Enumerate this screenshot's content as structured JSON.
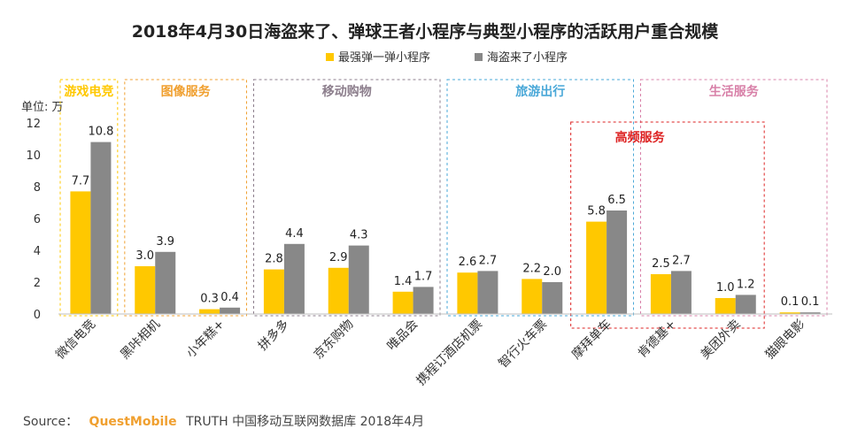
{
  "chart_data": {
    "type": "bar",
    "title": "2018年4月30日海盗来了、弹球王者小程序与典型小程序的活跃用户重合规模",
    "ylabel": "单位: 万",
    "xlabel": "",
    "ylim": [
      0,
      12
    ],
    "yticks": [
      0,
      2,
      4,
      6,
      8,
      10,
      12
    ],
    "grid": false,
    "legend_position": "top-center",
    "categories": [
      "微信电竞",
      "黑咔相机",
      "小年糕+",
      "拼多多",
      "京东购物",
      "唯品会",
      "携程订酒店机票",
      "智行火车票",
      "摩拜单车",
      "肯德基+",
      "美团外卖",
      "猫眼电影"
    ],
    "series": [
      {
        "name": "最强弹一弹小程序",
        "color": "#FFC800",
        "values": [
          7.7,
          3.0,
          0.3,
          2.8,
          2.9,
          1.4,
          2.6,
          2.2,
          5.8,
          2.5,
          1.0,
          0.1
        ]
      },
      {
        "name": "海盗来了小程序",
        "color": "#888888",
        "values": [
          10.8,
          3.9,
          0.4,
          4.4,
          4.3,
          1.7,
          2.7,
          2.0,
          6.5,
          2.7,
          1.2,
          0.1
        ]
      }
    ],
    "value_labels": [
      [
        "7.7",
        "3.0",
        "0.3",
        "2.8",
        "2.9",
        "1.4",
        "2.6",
        "2.2",
        "5.8",
        "2.5",
        "1.0",
        "0.1"
      ],
      [
        "10.8",
        "3.9",
        "0.4",
        "4.4",
        "4.3",
        "1.7",
        "2.7",
        "2.0",
        "6.5",
        "2.7",
        "1.2",
        "0.1"
      ]
    ],
    "groups": [
      {
        "label": "游戏电竞",
        "color": "#FFC800",
        "categories": [
          "微信电竞"
        ]
      },
      {
        "label": "图像服务",
        "color": "#F0A030",
        "categories": [
          "黑咔相机",
          "小年糕+"
        ]
      },
      {
        "label": "移动购物",
        "color": "#8C7E8C",
        "categories": [
          "拼多多",
          "京东购物",
          "唯品会"
        ]
      },
      {
        "label": "旅游出行",
        "color": "#4AA8D8",
        "categories": [
          "携程订酒店机票",
          "智行火车票",
          "摩拜单车"
        ]
      },
      {
        "label": "生活服务",
        "color": "#D880A8",
        "categories": [
          "肯德基+",
          "美团外卖",
          "猫眼电影"
        ]
      }
    ],
    "highlight": {
      "label": "高频服务",
      "color": "#DD2222",
      "categories": [
        "摩拜单车",
        "肯德基+",
        "美团外卖"
      ]
    }
  },
  "source": {
    "prefix": "Source：",
    "brand": "QuestMobile",
    "text": "TRUTH 中国移动互联网数据库 2018年4月"
  }
}
